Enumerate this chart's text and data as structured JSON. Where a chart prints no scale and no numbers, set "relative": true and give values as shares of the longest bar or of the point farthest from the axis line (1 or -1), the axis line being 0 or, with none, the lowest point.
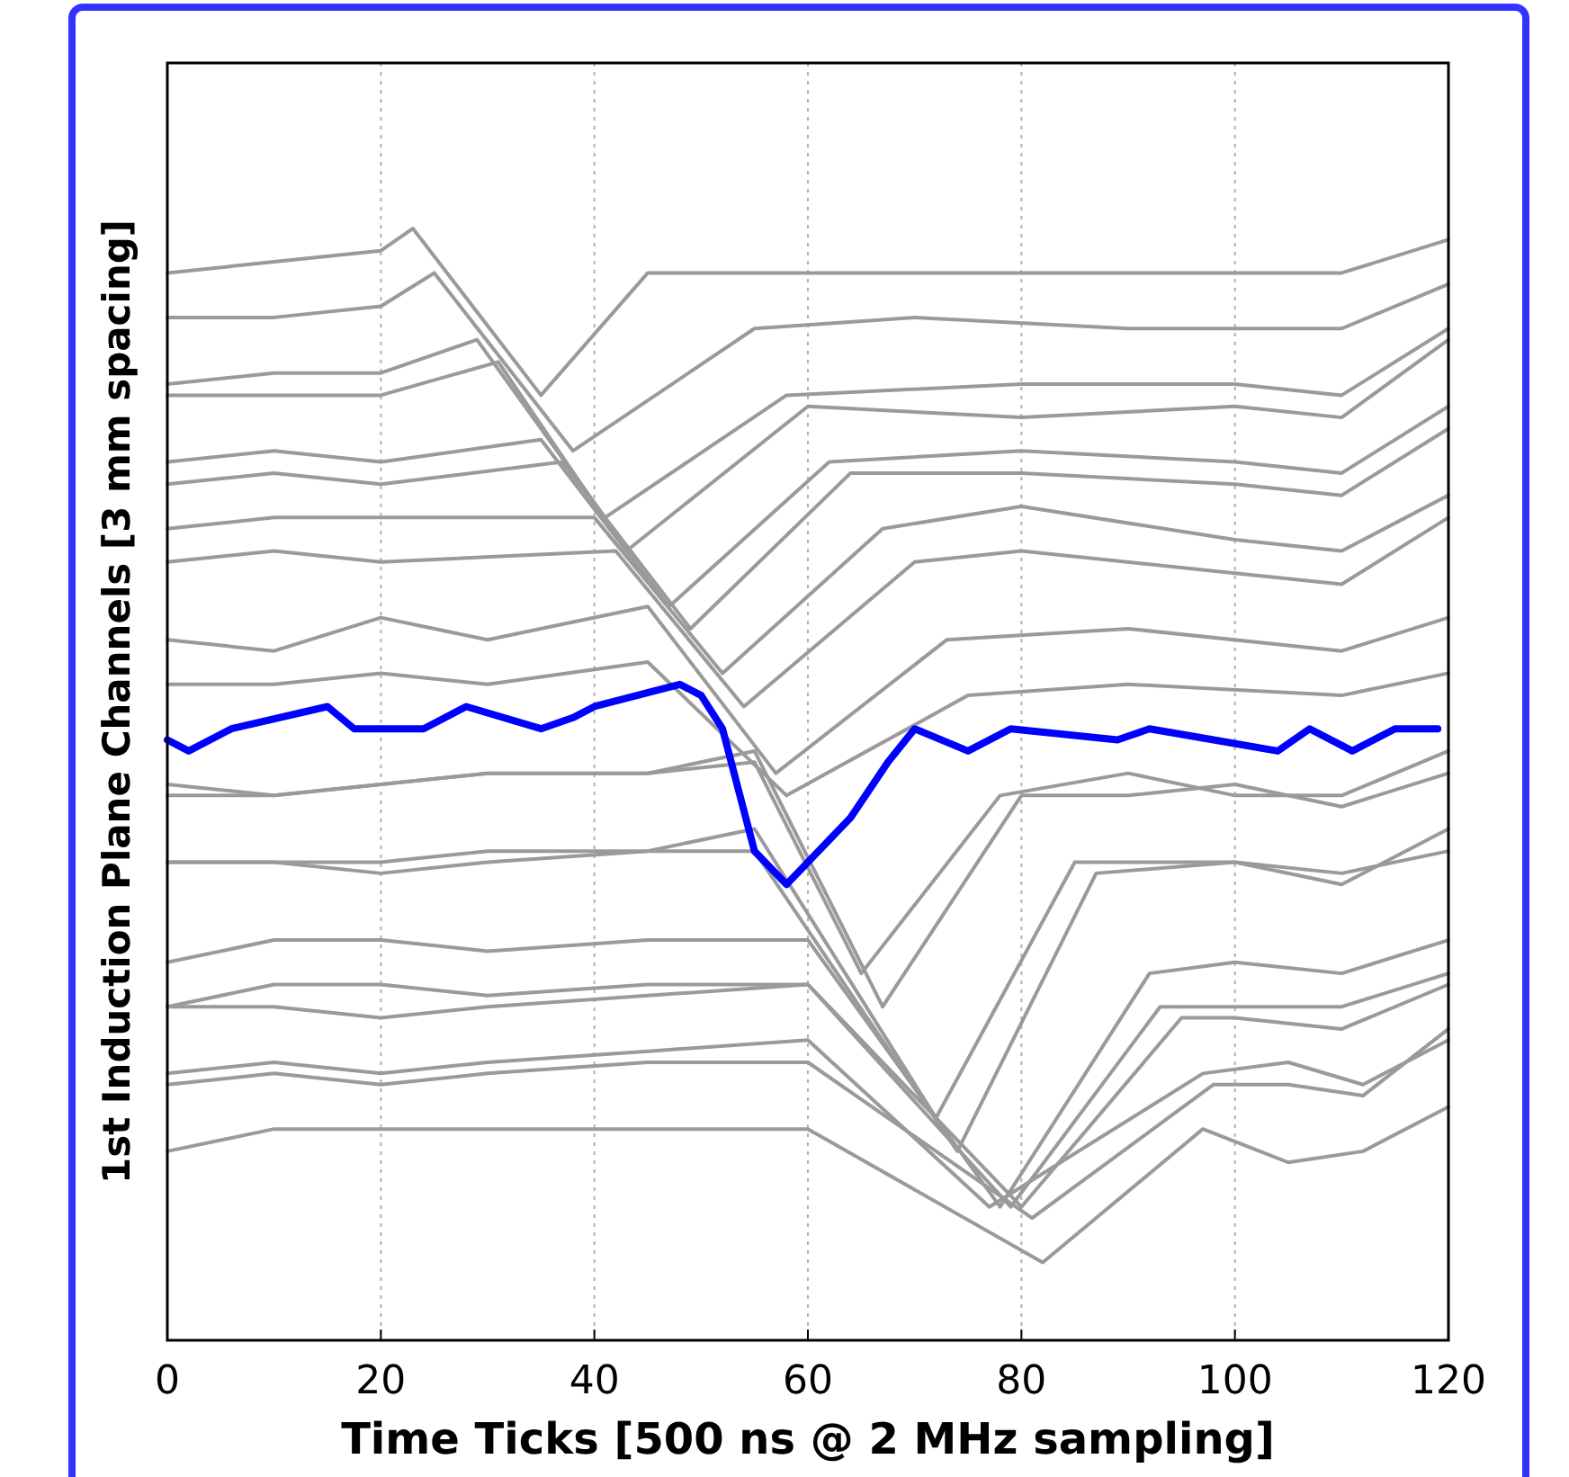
{
  "chart_data": {
    "type": "line",
    "relative": true,
    "xlabel": "Time Ticks [500 ns @ 2 MHz sampling]",
    "ylabel": "1st Induction Plane Channels [3 mm spacing]",
    "xlim": [
      0,
      120
    ],
    "xticks": [
      0,
      20,
      40,
      60,
      80,
      100,
      120
    ],
    "grid": "x",
    "series": [
      {
        "color": "#9a9a9a",
        "x": [
          0,
          10,
          20,
          23,
          35,
          45,
          60,
          80,
          100,
          110,
          120
        ],
        "values": [
          0.96,
          0.97,
          0.98,
          1.0,
          0.85,
          0.96,
          0.96,
          0.96,
          0.96,
          0.96,
          0.99
        ]
      },
      {
        "color": "#9a9a9a",
        "x": [
          0,
          10,
          20,
          25,
          38,
          55,
          70,
          90,
          110,
          120
        ],
        "values": [
          0.92,
          0.92,
          0.93,
          0.96,
          0.8,
          0.91,
          0.92,
          0.91,
          0.91,
          0.95
        ]
      },
      {
        "color": "#9a9a9a",
        "x": [
          0,
          10,
          20,
          29,
          41,
          58,
          80,
          100,
          110,
          120
        ],
        "values": [
          0.86,
          0.87,
          0.87,
          0.9,
          0.74,
          0.85,
          0.86,
          0.86,
          0.85,
          0.91
        ]
      },
      {
        "color": "#9a9a9a",
        "x": [
          0,
          10,
          20,
          31,
          43,
          60,
          80,
          100,
          110,
          120
        ],
        "values": [
          0.85,
          0.85,
          0.85,
          0.88,
          0.71,
          0.84,
          0.83,
          0.84,
          0.83,
          0.9
        ]
      },
      {
        "color": "#9a9a9a",
        "x": [
          0,
          10,
          20,
          35,
          47,
          62,
          80,
          100,
          110,
          120
        ],
        "values": [
          0.79,
          0.8,
          0.79,
          0.81,
          0.66,
          0.79,
          0.8,
          0.79,
          0.78,
          0.84
        ]
      },
      {
        "color": "#9a9a9a",
        "x": [
          0,
          10,
          20,
          37,
          49,
          64,
          80,
          100,
          110,
          120
        ],
        "values": [
          0.77,
          0.78,
          0.77,
          0.79,
          0.64,
          0.78,
          0.78,
          0.77,
          0.76,
          0.82
        ]
      },
      {
        "color": "#9a9a9a",
        "x": [
          0,
          10,
          20,
          40,
          52,
          67,
          80,
          100,
          110,
          120
        ],
        "values": [
          0.73,
          0.74,
          0.74,
          0.74,
          0.6,
          0.73,
          0.75,
          0.72,
          0.71,
          0.76
        ]
      },
      {
        "color": "#9a9a9a",
        "x": [
          0,
          10,
          20,
          42,
          54,
          70,
          80,
          100,
          110,
          120
        ],
        "values": [
          0.7,
          0.71,
          0.7,
          0.71,
          0.57,
          0.7,
          0.71,
          0.69,
          0.68,
          0.74
        ]
      },
      {
        "color": "#9a9a9a",
        "x": [
          0,
          10,
          20,
          30,
          45,
          57,
          73,
          90,
          110,
          120
        ],
        "values": [
          0.63,
          0.62,
          0.65,
          0.63,
          0.66,
          0.51,
          0.63,
          0.64,
          0.62,
          0.65
        ]
      },
      {
        "color": "#9a9a9a",
        "x": [
          0,
          10,
          20,
          30,
          45,
          58,
          75,
          90,
          110,
          120
        ],
        "values": [
          0.59,
          0.59,
          0.6,
          0.59,
          0.61,
          0.49,
          0.58,
          0.59,
          0.58,
          0.6
        ]
      },
      {
        "color": "#9a9a9a",
        "x": [
          0,
          10,
          20,
          30,
          45,
          55,
          65,
          78,
          90,
          100,
          110,
          120
        ],
        "values": [
          0.5,
          0.49,
          0.5,
          0.51,
          0.51,
          0.52,
          0.33,
          0.49,
          0.51,
          0.49,
          0.49,
          0.53
        ]
      },
      {
        "color": "#9a9a9a",
        "x": [
          0,
          10,
          20,
          30,
          45,
          55,
          67,
          80,
          90,
          100,
          110,
          120
        ],
        "values": [
          0.49,
          0.49,
          0.5,
          0.51,
          0.51,
          0.53,
          0.3,
          0.49,
          0.49,
          0.5,
          0.48,
          0.51
        ]
      },
      {
        "color": "#9a9a9a",
        "x": [
          0,
          10,
          20,
          30,
          45,
          55,
          72,
          85,
          100,
          110,
          120
        ],
        "values": [
          0.43,
          0.43,
          0.42,
          0.43,
          0.44,
          0.46,
          0.2,
          0.43,
          0.43,
          0.41,
          0.46
        ]
      },
      {
        "color": "#9a9a9a",
        "x": [
          0,
          10,
          20,
          30,
          45,
          55,
          74,
          87,
          100,
          110,
          120
        ],
        "values": [
          0.43,
          0.43,
          0.43,
          0.44,
          0.44,
          0.44,
          0.17,
          0.42,
          0.43,
          0.42,
          0.44
        ]
      },
      {
        "color": "#9a9a9a",
        "x": [
          0,
          10,
          20,
          30,
          45,
          60,
          78,
          92,
          100,
          110,
          120
        ],
        "values": [
          0.34,
          0.36,
          0.36,
          0.35,
          0.36,
          0.36,
          0.12,
          0.33,
          0.34,
          0.33,
          0.36
        ]
      },
      {
        "color": "#9a9a9a",
        "x": [
          0,
          10,
          20,
          30,
          45,
          60,
          79,
          93,
          100,
          110,
          120
        ],
        "values": [
          0.3,
          0.32,
          0.32,
          0.31,
          0.32,
          0.32,
          0.12,
          0.3,
          0.3,
          0.3,
          0.33
        ]
      },
      {
        "color": "#9a9a9a",
        "x": [
          0,
          10,
          20,
          30,
          45,
          60,
          80,
          95,
          100,
          110,
          120
        ],
        "values": [
          0.3,
          0.3,
          0.29,
          0.3,
          0.31,
          0.32,
          0.12,
          0.29,
          0.29,
          0.28,
          0.32
        ]
      },
      {
        "color": "#9a9a9a",
        "x": [
          0,
          10,
          20,
          30,
          45,
          60,
          77,
          97,
          105,
          112,
          120
        ],
        "values": [
          0.24,
          0.25,
          0.24,
          0.25,
          0.26,
          0.27,
          0.12,
          0.24,
          0.25,
          0.23,
          0.27
        ]
      },
      {
        "color": "#9a9a9a",
        "x": [
          0,
          10,
          20,
          30,
          45,
          60,
          81,
          98,
          105,
          112,
          120
        ],
        "values": [
          0.23,
          0.24,
          0.23,
          0.24,
          0.25,
          0.25,
          0.11,
          0.23,
          0.23,
          0.22,
          0.28
        ]
      },
      {
        "color": "#9a9a9a",
        "x": [
          0,
          10,
          20,
          30,
          45,
          60,
          82,
          97,
          105,
          112,
          120
        ],
        "values": [
          0.17,
          0.19,
          0.19,
          0.19,
          0.19,
          0.19,
          0.07,
          0.19,
          0.16,
          0.17,
          0.21
        ]
      },
      {
        "color": "#0000ff",
        "x": [
          0,
          2,
          6,
          15,
          17.5,
          24,
          28,
          35,
          38,
          40,
          48,
          50,
          52,
          55,
          58,
          64,
          67.5,
          70,
          75,
          79,
          89,
          92,
          98,
          104,
          107,
          111,
          115,
          119
        ],
        "values": [
          0.54,
          0.53,
          0.55,
          0.57,
          0.55,
          0.55,
          0.57,
          0.55,
          0.56,
          0.57,
          0.59,
          0.58,
          0.55,
          0.44,
          0.41,
          0.47,
          0.52,
          0.55,
          0.53,
          0.55,
          0.54,
          0.55,
          0.54,
          0.53,
          0.55,
          0.53,
          0.55,
          0.55
        ]
      }
    ]
  }
}
